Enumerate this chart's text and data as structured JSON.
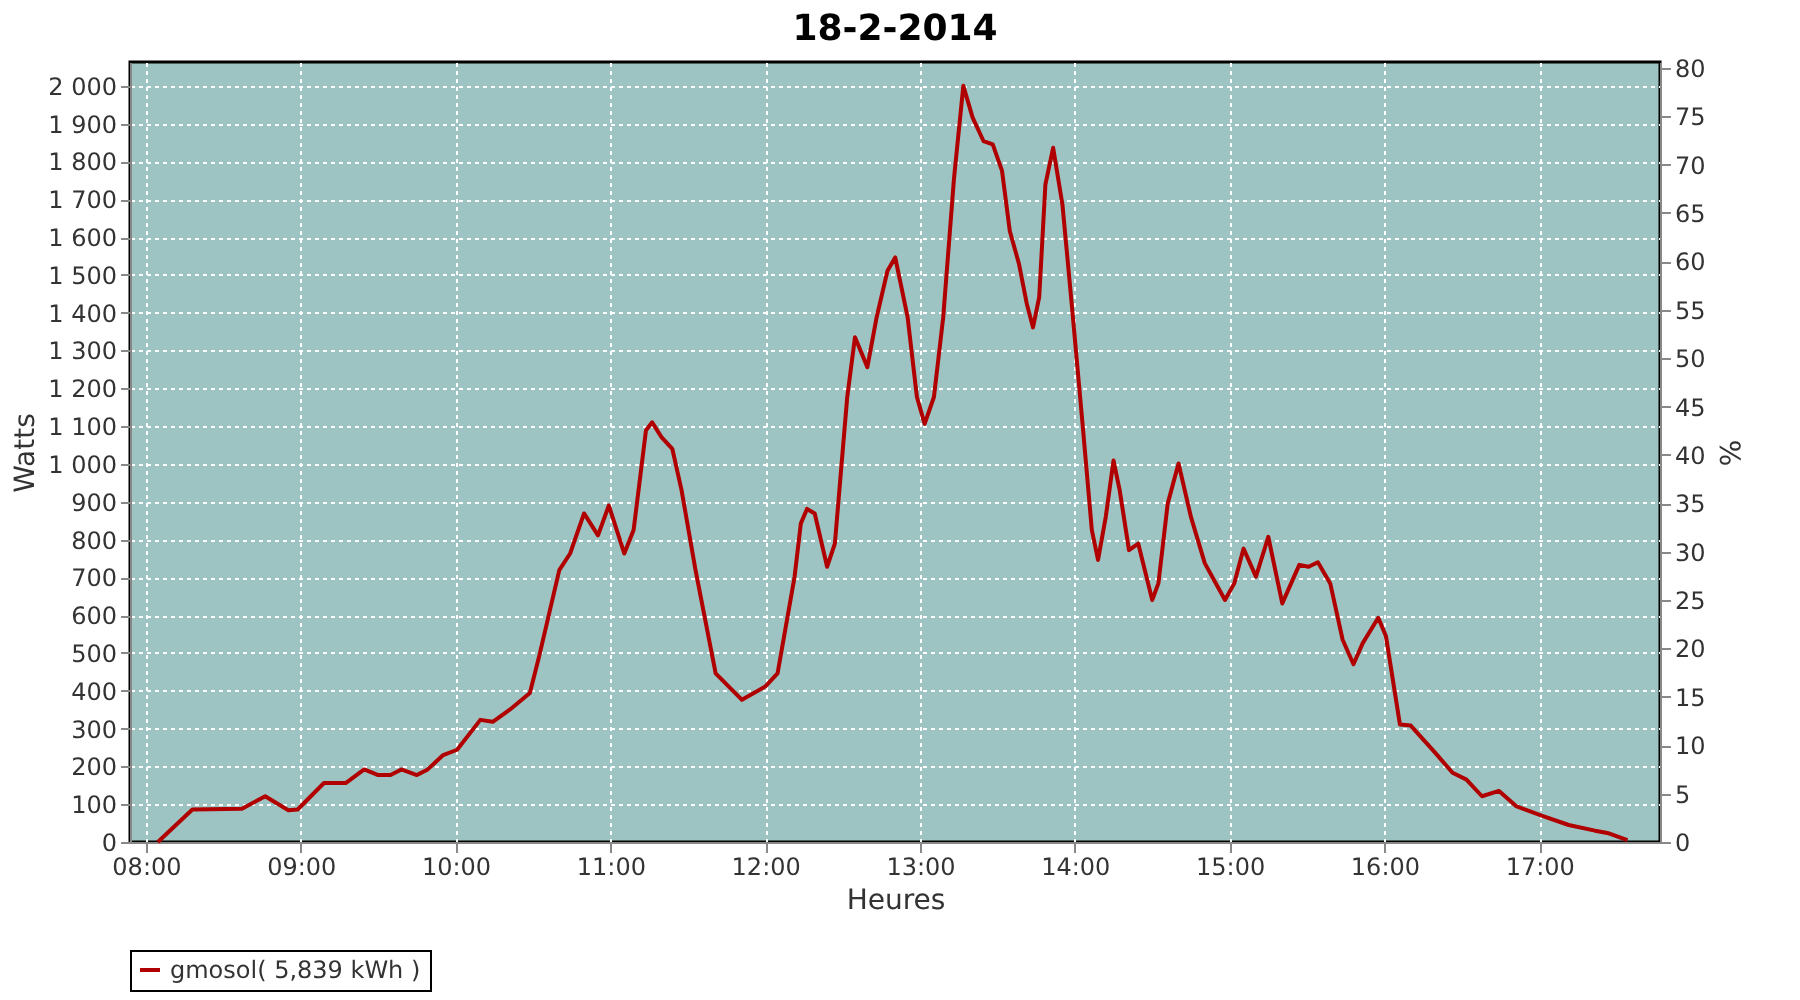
{
  "chart_data": {
    "type": "line",
    "title": "18-2-2014",
    "xlabel": "Heures",
    "ylabel": "Watts",
    "y2label": "%",
    "xlim": [
      7.897,
      17.78
    ],
    "xticks": [
      {
        "value": 8,
        "label": "08:00"
      },
      {
        "value": 9,
        "label": "09:00"
      },
      {
        "value": 10,
        "label": "10:00"
      },
      {
        "value": 11,
        "label": "11:00"
      },
      {
        "value": 12,
        "label": "12:00"
      },
      {
        "value": 13,
        "label": "13:00"
      },
      {
        "value": 14,
        "label": "14:00"
      },
      {
        "value": 15,
        "label": "15:00"
      },
      {
        "value": 16,
        "label": "16:00"
      },
      {
        "value": 17,
        "label": "17:00"
      }
    ],
    "ylim": [
      0,
      2063
    ],
    "yticks": [
      0,
      100,
      200,
      300,
      400,
      500,
      600,
      700,
      800,
      900,
      {
        "value": 1000,
        "label": "1 000"
      },
      {
        "value": 1100,
        "label": "1 100"
      },
      {
        "value": 1200,
        "label": "1 200"
      },
      {
        "value": 1300,
        "label": "1 300"
      },
      {
        "value": 1400,
        "label": "1 400"
      },
      {
        "value": 1500,
        "label": "1 500"
      },
      {
        "value": 1600,
        "label": "1 600"
      },
      {
        "value": 1700,
        "label": "1 700"
      },
      {
        "value": 1800,
        "label": "1 800"
      },
      {
        "value": 1900,
        "label": "1 900"
      },
      {
        "value": 2000,
        "label": "2 000"
      }
    ],
    "y2lim": [
      0,
      80.6
    ],
    "y2ticks": [
      0,
      5,
      10,
      15,
      20,
      25,
      30,
      35,
      40,
      45,
      50,
      55,
      60,
      65,
      70,
      75,
      80
    ],
    "grid": true,
    "legend": "bottom",
    "marker": "none",
    "line_style": "solid",
    "series": [
      {
        "name": "gmosol( 5,839 kWh )",
        "color": "#b00000",
        "x": [
          8.077,
          8.3,
          8.62,
          8.77,
          8.92,
          8.98,
          9.15,
          9.29,
          9.41,
          9.5,
          9.58,
          9.65,
          9.75,
          9.82,
          9.92,
          10.01,
          10.16,
          10.24,
          10.35,
          10.48,
          10.54,
          10.61,
          10.67,
          10.74,
          10.83,
          10.92,
          10.99,
          11.09,
          11.15,
          11.23,
          11.27,
          11.33,
          11.4,
          11.46,
          11.55,
          11.68,
          11.85,
          12.0,
          12.08,
          12.19,
          12.23,
          12.27,
          12.32,
          12.4,
          12.45,
          12.53,
          12.58,
          12.66,
          12.72,
          12.79,
          12.84,
          12.92,
          12.98,
          13.03,
          13.09,
          13.15,
          13.22,
          13.28,
          13.34,
          13.41,
          13.47,
          13.53,
          13.58,
          13.64,
          13.69,
          13.73,
          13.77,
          13.81,
          13.86,
          13.92,
          13.98,
          14.05,
          14.11,
          14.15,
          14.2,
          14.25,
          14.29,
          14.35,
          14.41,
          14.5,
          14.54,
          14.6,
          14.67,
          14.75,
          14.84,
          14.97,
          15.03,
          15.09,
          15.17,
          15.25,
          15.34,
          15.45,
          15.51,
          15.57,
          15.65,
          15.73,
          15.8,
          15.86,
          15.96,
          16.01,
          16.1,
          16.17,
          16.33,
          16.44,
          16.53,
          16.63,
          16.74,
          16.85,
          17.02,
          17.19,
          17.36,
          17.44,
          17.57
        ],
        "values": [
          0,
          86,
          88,
          121,
          84,
          86,
          156,
          156,
          192,
          177,
          177,
          192,
          177,
          192,
          230,
          244,
          323,
          318,
          350,
          394,
          491,
          614,
          719,
          763,
          869,
          811,
          890,
          763,
          825,
          1089,
          1110,
          1071,
          1040,
          930,
          719,
          446,
          376,
          411,
          446,
          702,
          842,
          881,
          869,
          728,
          789,
          1177,
          1335,
          1256,
          1388,
          1511,
          1546,
          1388,
          1177,
          1106,
          1177,
          1388,
          1757,
          2000,
          1916,
          1854,
          1845,
          1775,
          1616,
          1528,
          1423,
          1361,
          1441,
          1739,
          1836,
          1686,
          1423,
          1106,
          825,
          746,
          860,
          1009,
          930,
          772,
          789,
          640,
          684,
          895,
          1001,
          860,
          737,
          640,
          684,
          776,
          702,
          807,
          631,
          733,
          728,
          740,
          684,
          535,
          470,
          526,
          593,
          544,
          311,
          308,
          235,
          183,
          165,
          121,
          135,
          95,
          69,
          45,
          30,
          24,
          5
        ]
      }
    ]
  }
}
